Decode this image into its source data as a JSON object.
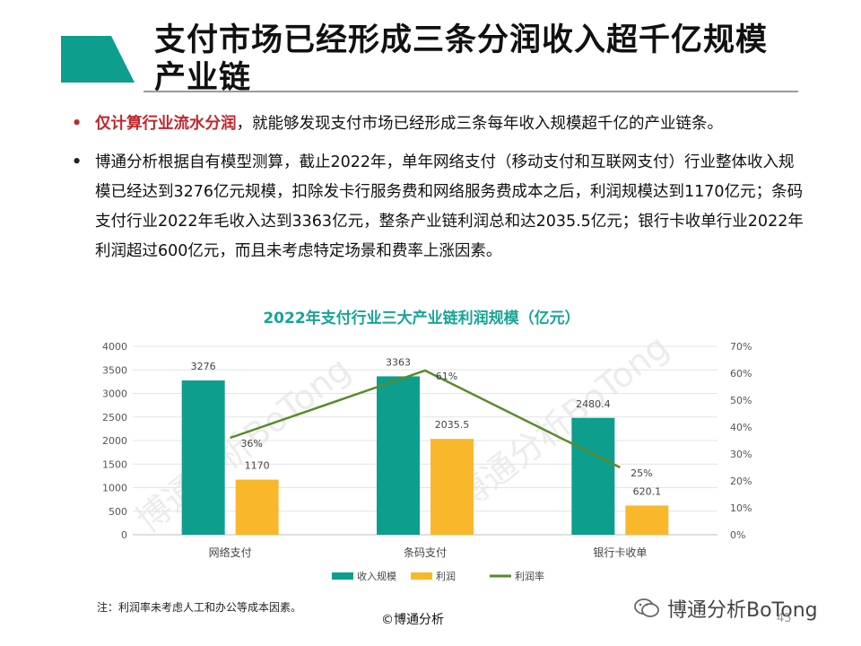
{
  "slide": {
    "title": "支付市场已经形成三条分润收入超千亿规模产业链",
    "bullets": [
      {
        "highlight": "仅计算行业流水分润",
        "text": "，就能够发现支付市场已经形成三条每年收入规模超千亿的产业链条。"
      },
      {
        "highlight": "",
        "text": "博通分析根据自有模型测算，截止2022年，单年网络支付（移动支付和互联网支付）行业整体收入规模已经达到3276亿元规模，扣除发卡行服务费和网络服务费成本之后，利润规模达到1170亿元；条码支付行业2022年毛收入达到3363亿元，整条产业链利润总和达2035.5亿元；银行卡收单行业2022年利润超过600亿元，而且未考虑特定场景和费率上涨因素。"
      }
    ],
    "footnote": "注：利润率未考虑人工和办公等成本因素。",
    "copyright": "©博通分析",
    "wechat": "博通分析BoTong",
    "page_number": "45",
    "watermark": "博通分析BoTong",
    "accent_color": "#0e9e8e",
    "highlight_color": "#c0282d"
  },
  "chart_data": {
    "type": "bar",
    "title": "2022年支付行业三大产业链利润规模（亿元）",
    "categories": [
      "网络支付",
      "条码支付",
      "银行卡收单"
    ],
    "series": [
      {
        "name": "收入规模",
        "type": "bar",
        "axis": "left",
        "color": "#0e9e8e",
        "values": [
          3276,
          3363,
          2480.4
        ],
        "labels": [
          "3276",
          "3363",
          "2480.4"
        ]
      },
      {
        "name": "利润",
        "type": "bar",
        "axis": "left",
        "color": "#f9b82c",
        "values": [
          1170,
          2035.5,
          620.1
        ],
        "labels": [
          "1170",
          "2035.5",
          "620.1"
        ]
      },
      {
        "name": "利润率",
        "type": "line",
        "axis": "right",
        "color": "#5a8a2c",
        "values": [
          36,
          61,
          25
        ],
        "labels": [
          "36%",
          "61%",
          "25%"
        ]
      }
    ],
    "ylim": [
      0,
      4000
    ],
    "yticks": [
      "0",
      "500",
      "1000",
      "1500",
      "2000",
      "2500",
      "3000",
      "3500",
      "4000"
    ],
    "y2lim": [
      0,
      70
    ],
    "y2ticks": [
      "0%",
      "10%",
      "20%",
      "30%",
      "40%",
      "50%",
      "60%",
      "70%"
    ],
    "grid": true,
    "legend": "bottom"
  }
}
